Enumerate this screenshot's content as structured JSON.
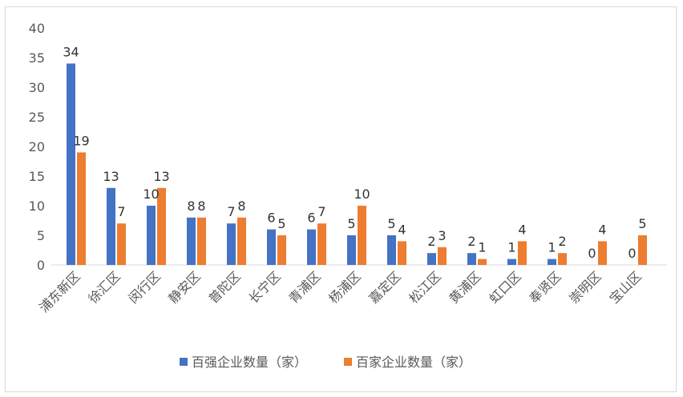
{
  "chart_data": {
    "type": "bar",
    "categories": [
      "浦东新区",
      "徐汇区",
      "闵行区",
      "静安区",
      "普陀区",
      "长宁区",
      "青浦区",
      "杨浦区",
      "嘉定区",
      "松江区",
      "黄浦区",
      "虹口区",
      "奉贤区",
      "崇明区",
      "宝山区"
    ],
    "series": [
      {
        "name": "百强企业数量（家）",
        "color": "#4472c4",
        "values": [
          34,
          13,
          10,
          8,
          7,
          6,
          6,
          5,
          5,
          2,
          2,
          1,
          1,
          0,
          0
        ]
      },
      {
        "name": "百家企业数量（家）",
        "color": "#ed7d31",
        "values": [
          19,
          7,
          13,
          8,
          8,
          5,
          7,
          10,
          4,
          3,
          1,
          4,
          2,
          4,
          5
        ]
      }
    ],
    "ylim": [
      0,
      40
    ],
    "yticks": [
      0,
      5,
      10,
      15,
      20,
      25,
      30,
      35,
      40
    ],
    "grid": false,
    "legend": "bottom"
  }
}
